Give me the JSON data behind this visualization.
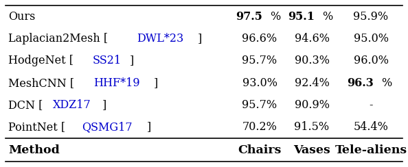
{
  "headers": [
    "Method",
    "Chairs",
    "Vases",
    "Tele-aliens"
  ],
  "rows": [
    {
      "method_parts": [
        {
          "text": "PointNet [",
          "color": "#000000",
          "bold": false
        },
        {
          "text": "QSMG17",
          "color": "#0000cd",
          "bold": false
        },
        {
          "text": "]",
          "color": "#000000",
          "bold": false
        }
      ],
      "chairs": {
        "text": "70.2%",
        "bold": false
      },
      "vases": {
        "text": "91.5%",
        "bold": false
      },
      "telealiens": {
        "text": "54.4%",
        "bold": false
      }
    },
    {
      "method_parts": [
        {
          "text": "DCN [",
          "color": "#000000",
          "bold": false
        },
        {
          "text": "XDZ17",
          "color": "#0000cd",
          "bold": false
        },
        {
          "text": "]",
          "color": "#000000",
          "bold": false
        }
      ],
      "chairs": {
        "text": "95.7%",
        "bold": false
      },
      "vases": {
        "text": "90.9%",
        "bold": false
      },
      "telealiens": {
        "text": "-",
        "bold": false
      }
    },
    {
      "method_parts": [
        {
          "text": "MeshCNN [",
          "color": "#000000",
          "bold": false
        },
        {
          "text": "HHF*19",
          "color": "#0000cd",
          "bold": false
        },
        {
          "text": "]",
          "color": "#000000",
          "bold": false
        }
      ],
      "chairs": {
        "text": "93.0%",
        "bold": false
      },
      "vases": {
        "text": "92.4%",
        "bold": false
      },
      "telealiens_parts": [
        {
          "text": "96.3",
          "bold": true,
          "color": "#000000"
        },
        {
          "text": "%",
          "bold": false,
          "color": "#000000"
        }
      ]
    },
    {
      "method_parts": [
        {
          "text": "HodgeNet [",
          "color": "#000000",
          "bold": false
        },
        {
          "text": "SS21",
          "color": "#0000cd",
          "bold": false
        },
        {
          "text": "]",
          "color": "#000000",
          "bold": false
        }
      ],
      "chairs": {
        "text": "95.7%",
        "bold": false
      },
      "vases": {
        "text": "90.3%",
        "bold": false
      },
      "telealiens": {
        "text": "96.0%",
        "bold": false
      }
    },
    {
      "method_parts": [
        {
          "text": "Laplacian2Mesh [",
          "color": "#000000",
          "bold": false
        },
        {
          "text": "DWL*23",
          "color": "#0000cd",
          "bold": false
        },
        {
          "text": "]",
          "color": "#000000",
          "bold": false
        }
      ],
      "chairs": {
        "text": "96.6%",
        "bold": false
      },
      "vases": {
        "text": "94.6%",
        "bold": false
      },
      "telealiens": {
        "text": "95.0%",
        "bold": false
      }
    },
    {
      "method_parts": [
        {
          "text": "Ours",
          "color": "#000000",
          "bold": false
        }
      ],
      "chairs_parts": [
        {
          "text": "97.5",
          "bold": true,
          "color": "#000000"
        },
        {
          "text": "%",
          "bold": false,
          "color": "#000000"
        }
      ],
      "vases_parts": [
        {
          "text": "95.1",
          "bold": true,
          "color": "#000000"
        },
        {
          "text": "%",
          "bold": false,
          "color": "#000000"
        }
      ],
      "telealiens": {
        "text": "95.9%",
        "bold": false
      }
    }
  ],
  "bg_color": "#ffffff",
  "font_size": 11.5,
  "header_font_size": 12.5
}
